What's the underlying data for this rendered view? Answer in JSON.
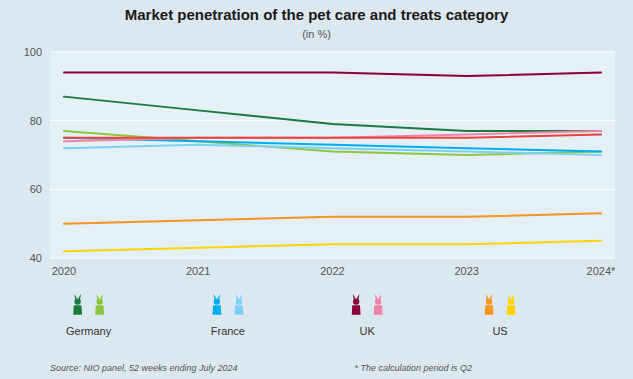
{
  "chart_data": {
    "type": "line",
    "title": "Market penetration of the pet care and treats category",
    "subtitle": "(in %)",
    "categories": [
      "2020",
      "2021",
      "2022",
      "2023",
      "2024*"
    ],
    "series": [
      {
        "color": "#1a7a3c",
        "values": [
          87,
          83,
          79,
          77,
          77
        ]
      },
      {
        "color": "#8dc63f",
        "values": [
          77,
          74,
          71,
          70,
          71
        ]
      },
      {
        "color": "#00aeef",
        "values": [
          75,
          74,
          73,
          72,
          71
        ]
      },
      {
        "color": "#7ecff4",
        "values": [
          72,
          73,
          72,
          71,
          70
        ]
      },
      {
        "color": "#8b0038",
        "values": [
          94,
          94,
          94,
          93,
          94
        ]
      },
      {
        "color": "#f083a8",
        "values": [
          74,
          75,
          75,
          76,
          77
        ]
      },
      {
        "color": "#f7941d",
        "values": [
          50,
          51,
          52,
          52,
          53
        ]
      },
      {
        "color": "#ffd400",
        "values": [
          42,
          43,
          44,
          44,
          45
        ]
      },
      {
        "color": "#e8453c",
        "values": [
          75,
          75,
          75,
          75,
          76
        ]
      }
    ],
    "ylim": [
      40,
      100
    ],
    "yticks": [
      40,
      60,
      80,
      100
    ],
    "grid": true,
    "background_color": "#dce8f0",
    "plot_bg_color": "#e4eff6",
    "legend_items": [
      {
        "label": "Germany",
        "colors": [
          "#1a7a3c",
          "#8dc63f"
        ]
      },
      {
        "label": "France",
        "colors": [
          "#00aeef",
          "#7ecff4"
        ]
      },
      {
        "label": "UK",
        "colors": [
          "#8b0038",
          "#f083a8"
        ]
      },
      {
        "label": "US",
        "colors": [
          "#f7941d",
          "#ffd400"
        ]
      }
    ],
    "source": "Source: NIO panel, 52 weeks ending July 2024",
    "note": "* The calculation period is Q2"
  }
}
